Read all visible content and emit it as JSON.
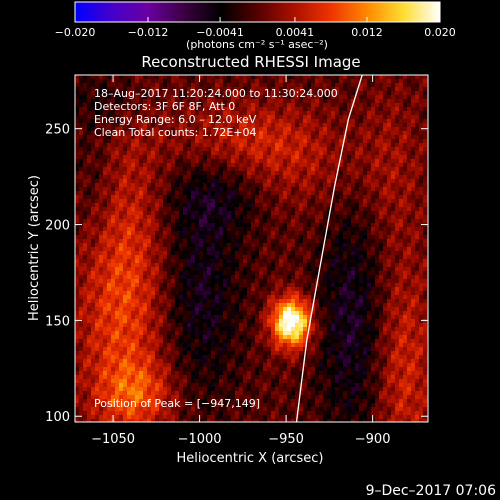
{
  "chart_data": {
    "type": "heatmap",
    "title": "Reconstructed RHESSI Image",
    "xlabel": "Heliocentric X (arcsec)",
    "ylabel": "Heliocentric Y (arcsec)",
    "xlim": [
      -1072,
      -868
    ],
    "ylim": [
      97,
      278
    ],
    "xticks": [
      -1050,
      -1000,
      -950,
      -900
    ],
    "yticks": [
      100,
      150,
      200,
      250
    ],
    "xtick_labels": [
      "−1050",
      "−1000",
      "−950",
      "−900"
    ],
    "ytick_labels": [
      "100",
      "150",
      "200",
      "250"
    ],
    "colorbar": {
      "range": [
        -0.02,
        0.02
      ],
      "ticks": [
        -0.02,
        -0.012,
        -0.0041,
        0.0041,
        0.012,
        0.02
      ],
      "tick_labels": [
        "−0.020",
        "−0.012",
        "−0.0041",
        "0.0041",
        "0.012",
        "0.020"
      ],
      "unit_label": "(photons cm⁻² s⁻¹ asec⁻²)",
      "colormap": [
        "#0000ff",
        "#4400cc",
        "#6a00a0",
        "#3a0040",
        "#000000",
        "#550000",
        "#aa1000",
        "#ee3300",
        "#ff8800",
        "#ffdd33",
        "#ffffff"
      ]
    },
    "annotations": [
      "18–Aug–2017 11:20:24.000 to 11:30:24.000",
      "Detectors: 3F 6F 8F, Att 0",
      "Energy Range: 6.0 – 12.0 keV",
      "Clean     Total counts: 1.72E+04"
    ],
    "peak_label": "Position of Peak = [−947,149]",
    "peak": {
      "x": -947,
      "y": 149,
      "value": 0.02
    },
    "limb_curve": {
      "color": "#ffffff",
      "points": [
        [
          -944,
          97
        ],
        [
          -938,
          140
        ],
        [
          -930,
          180
        ],
        [
          -922,
          220
        ],
        [
          -914,
          255
        ],
        [
          -906,
          278
        ]
      ]
    },
    "blobs": [
      {
        "x": -947,
        "y": 149,
        "sx": 8,
        "sy": 9,
        "amp": 0.022
      },
      {
        "x": -1045,
        "y": 165,
        "sx": 18,
        "sy": 55,
        "amp": 0.0085
      },
      {
        "x": -1035,
        "y": 112,
        "sx": 15,
        "sy": 12,
        "amp": 0.006
      },
      {
        "x": -975,
        "y": 245,
        "sx": 30,
        "sy": 14,
        "amp": 0.005
      },
      {
        "x": -940,
        "y": 230,
        "sx": 25,
        "sy": 18,
        "amp": 0.003
      },
      {
        "x": -882,
        "y": 125,
        "sx": 12,
        "sy": 40,
        "amp": 0.006
      },
      {
        "x": -890,
        "y": 230,
        "sx": 14,
        "sy": 30,
        "amp": 0.003
      },
      {
        "x": -1060,
        "y": 220,
        "sx": 10,
        "sy": 28,
        "amp": -0.0035
      },
      {
        "x": -1000,
        "y": 165,
        "sx": 16,
        "sy": 40,
        "amp": -0.0055
      },
      {
        "x": -990,
        "y": 215,
        "sx": 20,
        "sy": 14,
        "amp": -0.004
      },
      {
        "x": -912,
        "y": 150,
        "sx": 14,
        "sy": 45,
        "amp": -0.006
      },
      {
        "x": -1055,
        "y": 265,
        "sx": 16,
        "sy": 10,
        "amp": -0.003
      }
    ],
    "grid": false
  },
  "footer": {
    "date": "9–Dec–2017 07:06"
  }
}
